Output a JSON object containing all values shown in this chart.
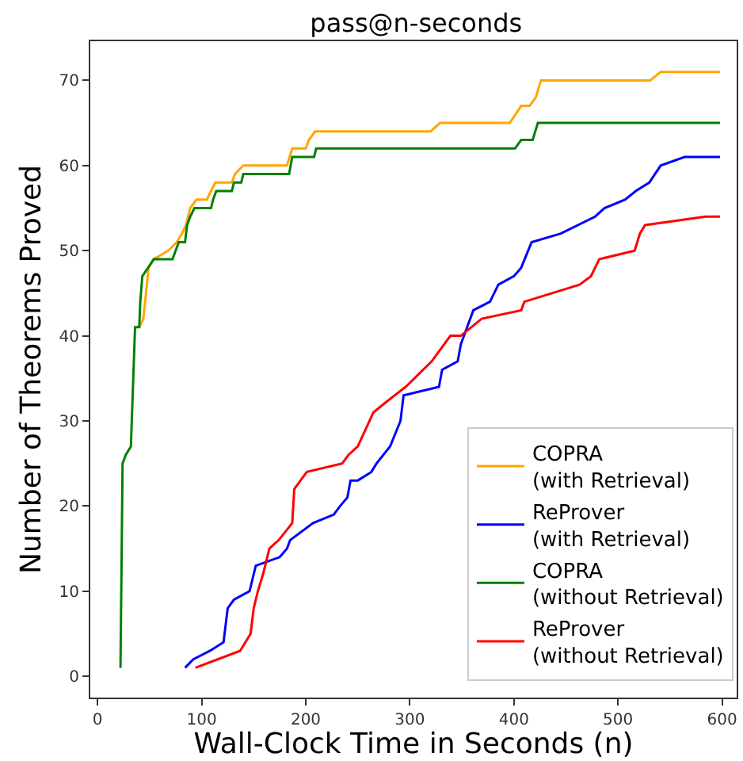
{
  "chart_data": {
    "type": "line",
    "title": "pass@n-seconds",
    "xlabel": "Wall-Clock Time in Seconds (n)",
    "ylabel": "Number of Theorems Proved",
    "xlim": [
      -7,
      614
    ],
    "xticks": [
      0,
      100,
      200,
      300,
      400,
      500,
      600
    ],
    "ylim": [
      -2.5,
      74.6
    ],
    "yticks": [
      0,
      10,
      20,
      30,
      40,
      50,
      60,
      70
    ],
    "grid": false,
    "legend": "bottom right",
    "marker": "none",
    "line_style": "solid",
    "series": [
      {
        "name": "COPRA\n(with Retrieval)",
        "color": "#ffa500",
        "x": [
          40,
          44,
          49,
          54,
          68,
          76,
          81,
          85,
          89,
          95,
          105,
          109,
          113,
          129,
          132,
          140,
          182,
          187,
          200,
          203,
          209,
          320,
          329,
          396,
          407,
          415,
          421,
          426,
          531,
          541,
          598
        ],
        "values": [
          41,
          42,
          48,
          49,
          50,
          51,
          52,
          53,
          55,
          56,
          56,
          57,
          58,
          58,
          59,
          60,
          60,
          62,
          62,
          63,
          64,
          64,
          65,
          65,
          67,
          67,
          68,
          70,
          70,
          71,
          71
        ]
      },
      {
        "name": "ReProver\n(with Retrieval)",
        "color": "#0000ff",
        "x": [
          84,
          92,
          108,
          121,
          125,
          131,
          146,
          152,
          175,
          182,
          185,
          207,
          227,
          233,
          240,
          243,
          250,
          263,
          268,
          281,
          291,
          294,
          328,
          331,
          346,
          349,
          361,
          377,
          385,
          400,
          407,
          417,
          445,
          478,
          487,
          507,
          517,
          530,
          541,
          564,
          598
        ],
        "values": [
          1,
          2,
          3,
          4,
          8,
          9,
          10,
          13,
          14,
          15,
          16,
          18,
          19,
          20,
          21,
          23,
          23,
          24,
          25,
          27,
          30,
          33,
          34,
          36,
          37,
          39,
          43,
          44,
          46,
          47,
          48,
          51,
          52,
          54,
          55,
          56,
          57,
          58,
          60,
          61,
          61
        ]
      },
      {
        "name": "COPRA\n(without Retrieval)",
        "color": "#008000",
        "x": [
          22,
          24,
          27,
          32,
          36,
          40,
          41,
          43,
          54,
          72,
          75,
          78,
          84,
          86,
          89,
          93,
          109,
          111,
          114,
          129,
          131,
          138,
          140,
          184,
          187,
          208,
          210,
          401,
          407,
          418,
          423,
          598
        ],
        "values": [
          1,
          25,
          26,
          27,
          41,
          41,
          44,
          47,
          49,
          49,
          50,
          51,
          51,
          53,
          54,
          55,
          55,
          56,
          57,
          57,
          58,
          58,
          59,
          59,
          61,
          61,
          62,
          62,
          63,
          63,
          65,
          65
        ]
      },
      {
        "name": "ReProver\n(without Retrieval)",
        "color": "#ff0000",
        "x": [
          94,
          137,
          147,
          150,
          154,
          159,
          165,
          174,
          187,
          189,
          195,
          201,
          235,
          241,
          250,
          265,
          275,
          296,
          321,
          339,
          349,
          369,
          407,
          410,
          463,
          474,
          482,
          516,
          521,
          526,
          584,
          598
        ],
        "values": [
          1,
          3,
          5,
          8,
          10,
          12,
          15,
          16,
          18,
          22,
          23,
          24,
          25,
          26,
          27,
          31,
          32,
          34,
          37,
          40,
          40,
          42,
          43,
          44,
          46,
          47,
          49,
          50,
          52,
          53,
          54,
          54
        ]
      }
    ]
  }
}
